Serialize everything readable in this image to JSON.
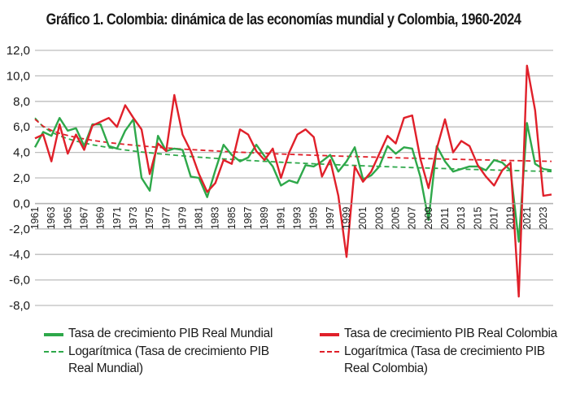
{
  "title": "Gráfico 1. Colombia: dinámica de las economías mundial y Colombia, 1960-2024",
  "chart_data": {
    "type": "line",
    "title": "Gráfico 1. Colombia: dinámica de las economías mundial y Colombia, 1960-2024",
    "xlabel": "",
    "ylabel": "",
    "ylim": [
      -8,
      12
    ],
    "yticks": [
      "12,0",
      "10,0",
      "8,0",
      "6,0",
      "4,0",
      "2,0",
      "0,0",
      "-2,0",
      "-4,0",
      "-6,0",
      "-8,0"
    ],
    "ytick_values": [
      12,
      10,
      8,
      6,
      4,
      2,
      0,
      -2,
      -4,
      -6,
      -8
    ],
    "grid": true,
    "legend_position": "bottom",
    "x": [
      1961,
      1962,
      1963,
      1964,
      1965,
      1966,
      1967,
      1968,
      1969,
      1970,
      1971,
      1972,
      1973,
      1974,
      1975,
      1976,
      1977,
      1978,
      1979,
      1980,
      1981,
      1982,
      1983,
      1984,
      1985,
      1986,
      1987,
      1988,
      1989,
      1990,
      1991,
      1992,
      1993,
      1994,
      1995,
      1996,
      1997,
      1998,
      1999,
      2000,
      2001,
      2002,
      2003,
      2004,
      2005,
      2006,
      2007,
      2008,
      2009,
      2010,
      2011,
      2012,
      2013,
      2014,
      2015,
      2016,
      2017,
      2018,
      2019,
      2020,
      2021,
      2022,
      2023,
      2024
    ],
    "xtick_labels": [
      "1961",
      "1963",
      "1965",
      "1967",
      "1969",
      "1971",
      "1973",
      "1975",
      "1977",
      "1979",
      "1981",
      "1983",
      "1985",
      "1987",
      "1989",
      "1991",
      "1993",
      "1995",
      "1997",
      "1999",
      "2001",
      "2003",
      "2005",
      "2007",
      "2009",
      "2011",
      "2013",
      "2015",
      "2017",
      "2019",
      "2021",
      "2023"
    ],
    "series": [
      {
        "name": "Tasa de crecimiento PIB Real Mundial",
        "style": "solid",
        "color": "#2ea84a",
        "values": [
          4.4,
          5.6,
          5.3,
          6.7,
          5.7,
          5.9,
          4.5,
          6.2,
          6.2,
          4.5,
          4.3,
          5.7,
          6.6,
          2.0,
          1.0,
          5.3,
          4.1,
          4.3,
          4.2,
          2.1,
          2.0,
          0.5,
          2.6,
          4.6,
          3.8,
          3.3,
          3.6,
          4.6,
          3.7,
          2.9,
          1.4,
          1.8,
          1.6,
          3.0,
          2.9,
          3.3,
          3.8,
          2.5,
          3.3,
          4.4,
          1.9,
          2.2,
          2.9,
          4.5,
          3.9,
          4.4,
          4.3,
          2.1,
          -1.3,
          4.5,
          3.3,
          2.5,
          2.7,
          2.9,
          2.9,
          2.6,
          3.4,
          3.2,
          2.6,
          -3.0,
          6.3,
          3.1,
          2.7,
          2.6
        ]
      },
      {
        "name": "Tasa de crecimiento PIB Real Colombia",
        "style": "solid",
        "color": "#e0202a",
        "values": [
          5.1,
          5.4,
          3.3,
          6.2,
          3.9,
          5.4,
          4.2,
          6.1,
          6.4,
          6.7,
          6.0,
          7.7,
          6.7,
          5.8,
          2.3,
          4.7,
          4.1,
          8.5,
          5.4,
          4.1,
          2.3,
          0.9,
          1.6,
          3.4,
          3.1,
          5.8,
          5.4,
          4.1,
          3.4,
          4.3,
          2.0,
          4.0,
          5.4,
          5.8,
          5.2,
          2.1,
          3.4,
          0.6,
          -4.2,
          2.9,
          1.7,
          2.5,
          3.9,
          5.3,
          4.7,
          6.7,
          6.9,
          3.5,
          1.2,
          4.3,
          6.6,
          4.0,
          4.9,
          4.5,
          3.0,
          2.1,
          1.4,
          2.6,
          3.2,
          -7.3,
          10.8,
          7.3,
          0.6,
          0.7
        ]
      },
      {
        "name": "Logarítmica (Tasa de crecimiento PIB Real Mundial)",
        "style": "dashed",
        "color": "#2ea84a",
        "trend": "logarithmic",
        "values_at_ends": [
          6.7,
          2.5
        ]
      },
      {
        "name": "Logarítmica (Tasa de crecimiento PIB Real Colombia)",
        "style": "dashed",
        "color": "#e0202a",
        "trend": "logarithmic",
        "values_at_ends": [
          6.6,
          3.3
        ]
      }
    ]
  },
  "legend": [
    {
      "label": "Tasa de crecimiento PIB Real Mundial",
      "style": "solid",
      "color": "#2ea84a"
    },
    {
      "label": "Tasa de crecimiento PIB Real Colombia",
      "style": "solid",
      "color": "#e0202a"
    },
    {
      "label": "Logarítmica (Tasa de crecimiento PIB Real Mundial)",
      "style": "dashed",
      "color": "#2ea84a"
    },
    {
      "label": "Logarítmica (Tasa de crecimiento PIB Real Colombia)",
      "style": "dashed",
      "color": "#e0202a"
    }
  ]
}
